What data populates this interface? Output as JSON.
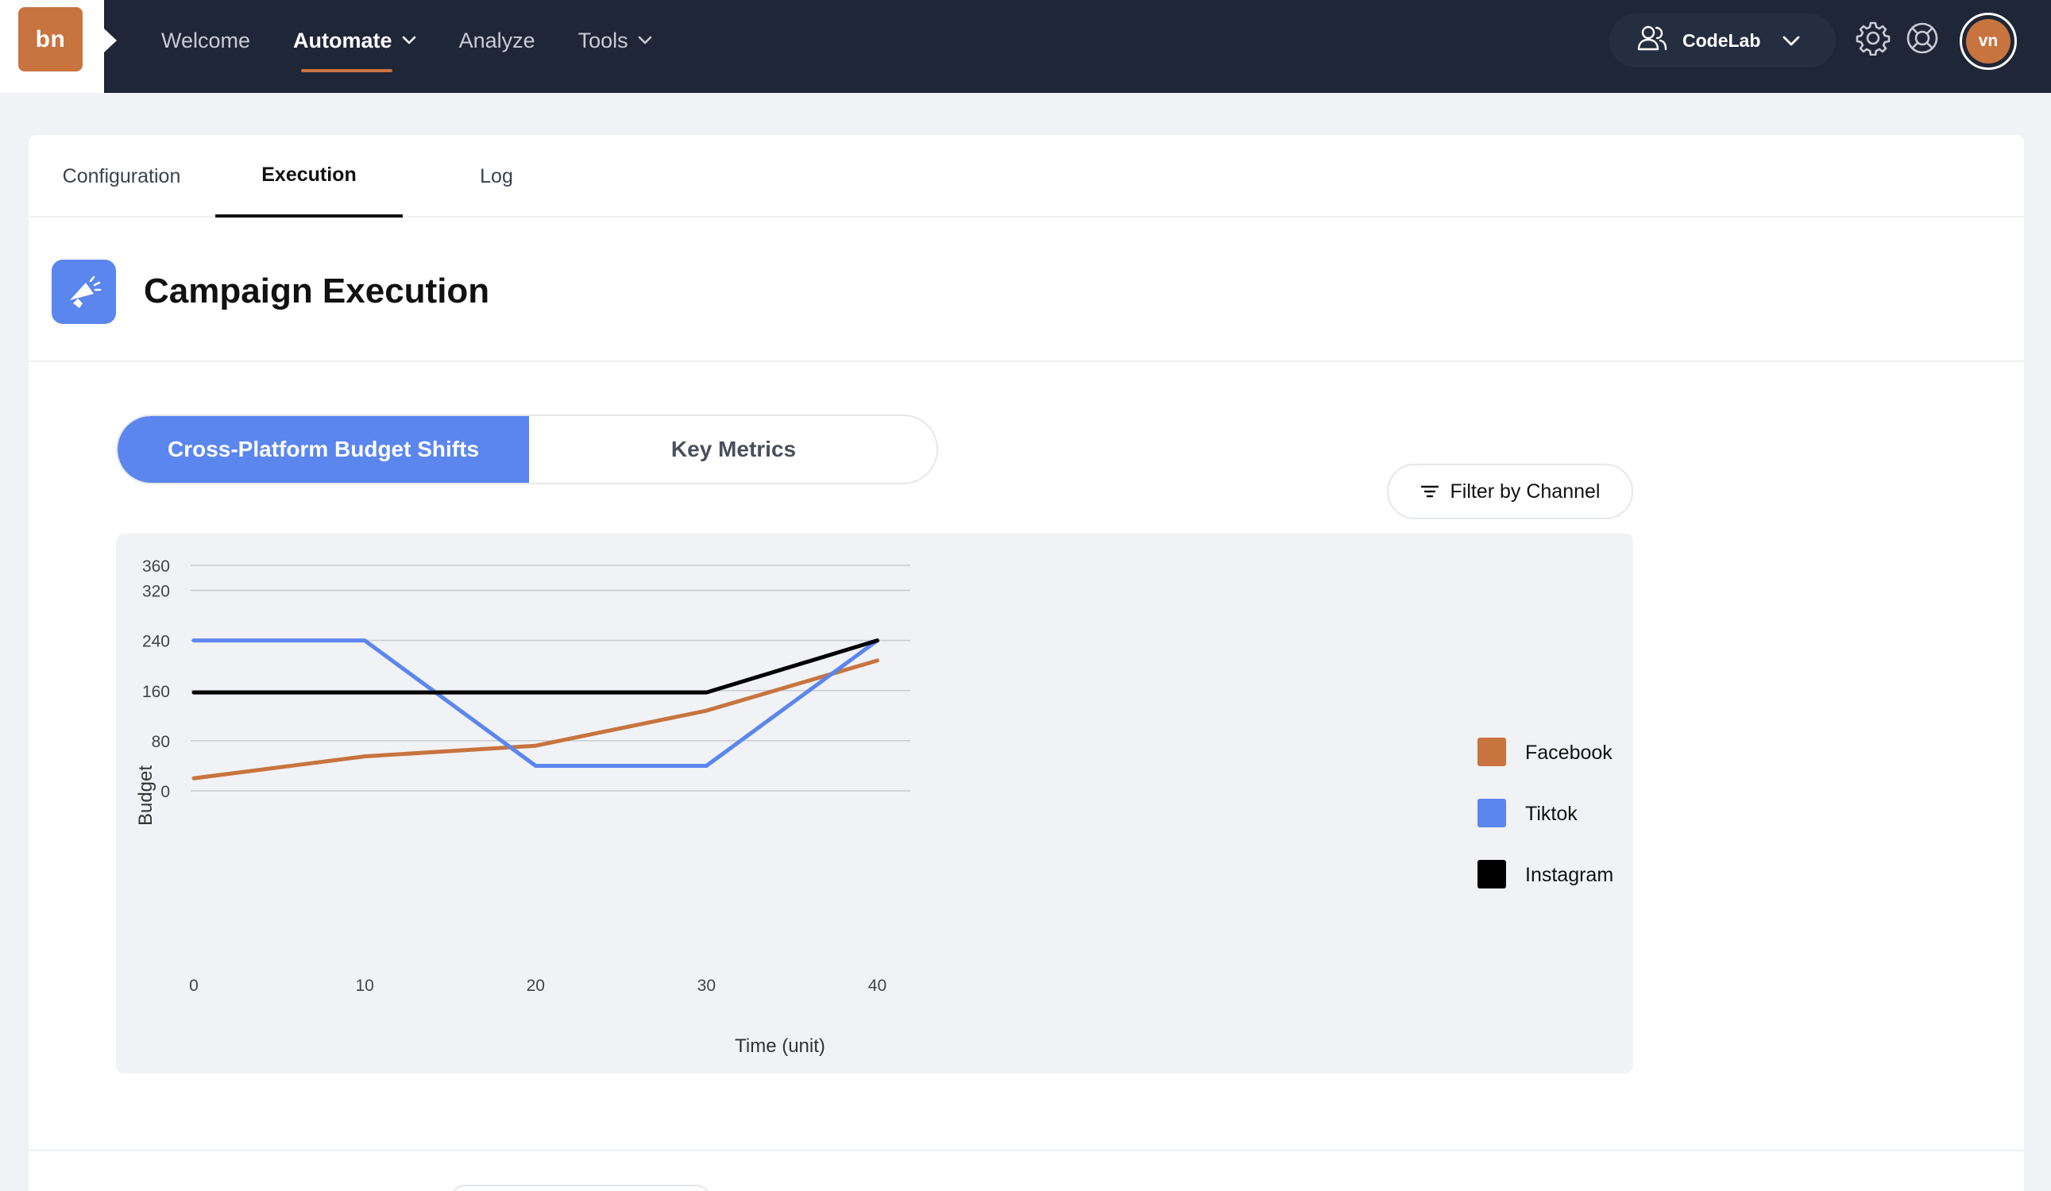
{
  "brand": {
    "logo_text": "bn"
  },
  "nav": {
    "items": [
      {
        "label": "Welcome",
        "active": false,
        "has_menu": false
      },
      {
        "label": "Automate",
        "active": true,
        "has_menu": true
      },
      {
        "label": "Analyze",
        "active": false,
        "has_menu": false
      },
      {
        "label": "Tools",
        "active": false,
        "has_menu": true
      }
    ]
  },
  "workspace": {
    "label": "CodeLab",
    "icon": "users-icon"
  },
  "toolbar_icons": [
    "gear-icon",
    "lifebuoy-icon"
  ],
  "user": {
    "initials": "vn"
  },
  "tabs": [
    {
      "label": "Configuration",
      "active": false
    },
    {
      "label": "Execution",
      "active": true
    },
    {
      "label": "Log",
      "active": false
    }
  ],
  "page": {
    "title": "Campaign Execution",
    "icon": "megaphone-icon"
  },
  "view_toggle": {
    "options": [
      {
        "label": "Cross-Platform Budget Shifts",
        "active": true
      },
      {
        "label": "Key Metrics",
        "active": false
      }
    ]
  },
  "filter": {
    "label": "Filter by Channel",
    "icon": "filter-icon"
  },
  "colors": {
    "nav_bg": "#1f2638",
    "accent": "#c8743f",
    "primary": "#5b86ee",
    "facebook": "#c8743f",
    "tiktok": "#5b86ee",
    "instagram": "#000000"
  },
  "chart_data": {
    "type": "line",
    "xlabel": "Time (unit)",
    "ylabel": "Budget",
    "xticks": [
      0,
      10,
      20,
      30,
      40
    ],
    "yticks": [
      0,
      80,
      160,
      240,
      320,
      360
    ],
    "ylim": [
      0,
      360
    ],
    "xlim": [
      0,
      41
    ],
    "grid": true,
    "legend": "right",
    "series": [
      {
        "name": "Facebook",
        "color": "#c8743f",
        "x": [
          0,
          10,
          20,
          30,
          40
        ],
        "y": [
          20,
          55,
          72,
          128,
          208
        ]
      },
      {
        "name": "Tiktok",
        "color": "#5b86ee",
        "x": [
          0,
          10,
          20,
          30,
          40
        ],
        "y": [
          240,
          240,
          40,
          40,
          240
        ]
      },
      {
        "name": "Instagram",
        "color": "#000000",
        "x": [
          0,
          10,
          20,
          30,
          40
        ],
        "y": [
          157,
          157,
          157,
          157,
          240
        ]
      }
    ]
  }
}
